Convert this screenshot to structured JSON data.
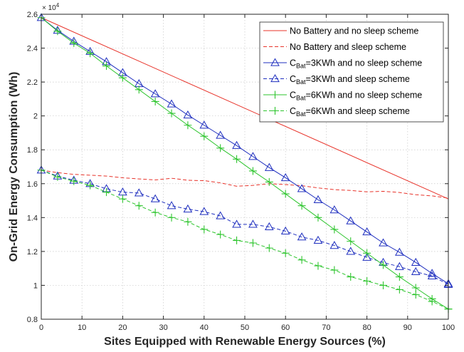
{
  "chart_data": {
    "type": "line",
    "xlabel": "Sites Equipped with Renewable Energy Sources (%)",
    "ylabel": "On-Grid Energy Consumption (Wh)",
    "exponent_label": "× 10",
    "exponent_power": "4",
    "xlim": [
      0,
      100
    ],
    "ylim": [
      0.8,
      2.6
    ],
    "xticks": [
      0,
      10,
      20,
      30,
      40,
      50,
      60,
      70,
      80,
      90,
      100
    ],
    "yticks": [
      0.8,
      1,
      1.2,
      1.4,
      1.6,
      1.8,
      2,
      2.2,
      2.4,
      2.6
    ],
    "ytick_labels": [
      "0.8",
      "1",
      "1.2",
      "1.4",
      "1.6",
      "1.8",
      "2",
      "2.2",
      "2.4",
      "2.6"
    ],
    "grid": true,
    "legend_position": "top-right",
    "series": [
      {
        "name_parts": [
          "No Battery and no sleep scheme"
        ],
        "color": "#e8332a",
        "dash": "solid",
        "marker": "none",
        "x": [
          0,
          100
        ],
        "y": [
          2.58,
          1.51
        ]
      },
      {
        "name_parts": [
          "No Battery and sleep scheme"
        ],
        "color": "#e8332a",
        "dash": "dashed",
        "marker": "none",
        "x": [
          0,
          4,
          8,
          12,
          16,
          20,
          24,
          28,
          32,
          36,
          40,
          44,
          48,
          52,
          56,
          60,
          64,
          68,
          72,
          76,
          80,
          84,
          88,
          92,
          96,
          100
        ],
        "y": [
          1.68,
          1.665,
          1.655,
          1.65,
          1.645,
          1.635,
          1.628,
          1.622,
          1.632,
          1.62,
          1.618,
          1.605,
          1.585,
          1.59,
          1.6,
          1.595,
          1.588,
          1.575,
          1.565,
          1.56,
          1.552,
          1.555,
          1.548,
          1.535,
          1.528,
          1.515
        ]
      },
      {
        "name_parts": [
          "C",
          "Bat",
          "=3KWh and no sleep scheme"
        ],
        "color": "#1f2fbf",
        "dash": "solid",
        "marker": "triangle",
        "x": [
          0,
          4,
          8,
          12,
          16,
          20,
          24,
          28,
          32,
          36,
          40,
          44,
          48,
          52,
          56,
          60,
          64,
          68,
          72,
          76,
          80,
          84,
          88,
          92,
          96,
          100
        ],
        "y": [
          2.58,
          2.505,
          2.44,
          2.38,
          2.32,
          2.255,
          2.19,
          2.13,
          2.07,
          2.005,
          1.945,
          1.885,
          1.825,
          1.76,
          1.695,
          1.635,
          1.57,
          1.505,
          1.445,
          1.38,
          1.315,
          1.25,
          1.195,
          1.135,
          1.07,
          1.01
        ]
      },
      {
        "name_parts": [
          "C",
          "Bat",
          "=3KWh and sleep scheme"
        ],
        "color": "#1f2fbf",
        "dash": "dashed",
        "marker": "triangle",
        "x": [
          0,
          4,
          8,
          12,
          16,
          20,
          24,
          28,
          32,
          36,
          40,
          44,
          48,
          52,
          56,
          60,
          64,
          68,
          72,
          76,
          80,
          84,
          88,
          92,
          96,
          100
        ],
        "y": [
          1.68,
          1.645,
          1.62,
          1.6,
          1.57,
          1.55,
          1.545,
          1.51,
          1.47,
          1.45,
          1.435,
          1.41,
          1.36,
          1.36,
          1.345,
          1.32,
          1.285,
          1.265,
          1.235,
          1.2,
          1.165,
          1.135,
          1.11,
          1.08,
          1.055,
          1.005
        ]
      },
      {
        "name_parts": [
          "C",
          "Bat",
          "=6KWh and no sleep scheme"
        ],
        "color": "#2ec52e",
        "dash": "solid",
        "marker": "plus",
        "x": [
          0,
          4,
          8,
          12,
          16,
          20,
          24,
          28,
          32,
          36,
          40,
          44,
          48,
          52,
          56,
          60,
          64,
          68,
          72,
          76,
          80,
          84,
          88,
          92,
          96,
          100
        ],
        "y": [
          2.58,
          2.5,
          2.43,
          2.37,
          2.295,
          2.225,
          2.155,
          2.085,
          2.015,
          1.945,
          1.88,
          1.81,
          1.745,
          1.675,
          1.61,
          1.54,
          1.47,
          1.4,
          1.33,
          1.26,
          1.19,
          1.12,
          1.05,
          0.985,
          0.92,
          0.86
        ]
      },
      {
        "name_parts": [
          "C",
          "Bat",
          "=6KWh and sleep scheme"
        ],
        "color": "#2ec52e",
        "dash": "dashed",
        "marker": "plus",
        "x": [
          0,
          4,
          8,
          12,
          16,
          20,
          24,
          28,
          32,
          36,
          40,
          44,
          48,
          52,
          56,
          60,
          64,
          68,
          72,
          76,
          80,
          84,
          88,
          92,
          96,
          100
        ],
        "y": [
          1.68,
          1.64,
          1.615,
          1.59,
          1.55,
          1.51,
          1.47,
          1.43,
          1.4,
          1.375,
          1.33,
          1.3,
          1.265,
          1.25,
          1.22,
          1.19,
          1.15,
          1.115,
          1.09,
          1.05,
          1.025,
          1.0,
          0.975,
          0.945,
          0.905,
          0.86
        ]
      }
    ]
  }
}
